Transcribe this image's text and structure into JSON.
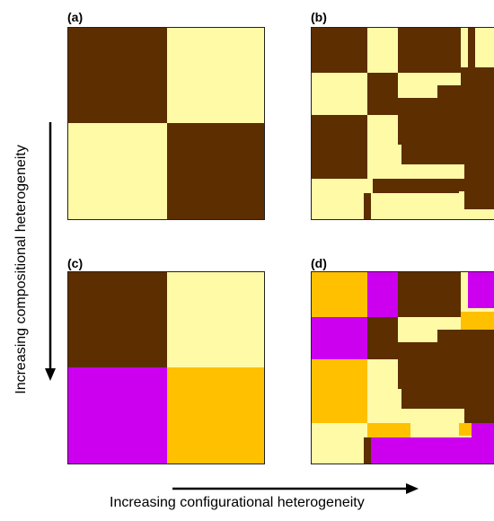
{
  "colors": {
    "brown": "#5c2e00",
    "cream": "#fffaa6",
    "magenta": "#cc00ee",
    "orange": "#ffc000"
  },
  "panels": [
    {
      "id": "a",
      "label": "(a)"
    },
    {
      "id": "b",
      "label": "(b)"
    },
    {
      "id": "c",
      "label": "(c)"
    },
    {
      "id": "d",
      "label": "(d)"
    }
  ],
  "axes": {
    "y_label": "Increasing compositional heterogeneity",
    "x_label": "Increasing configurational heterogeneity"
  }
}
